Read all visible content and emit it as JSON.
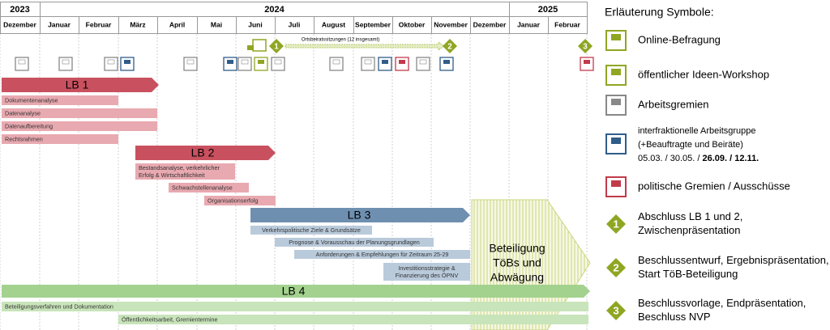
{
  "header": {
    "years": [
      "2023",
      "2024",
      "2025"
    ],
    "months": [
      "Dezember",
      "Januar",
      "Februar",
      "März",
      "April",
      "Mai",
      "Juni",
      "Juli",
      "August",
      "September",
      "Oktober",
      "November",
      "Dezember",
      "Januar",
      "Februar"
    ]
  },
  "milestones": {
    "labels": [
      "1",
      "2",
      "3"
    ],
    "note": "Ortsbeiratssitzungen (12 insgesamt)"
  },
  "phases": [
    {
      "title": "LB 1",
      "tasks": [
        [
          "Dokumentenanalyse"
        ],
        [
          "Datenanalyse"
        ],
        [
          "Datenaufbereitung"
        ],
        [
          "Rechtsrahmen"
        ]
      ]
    },
    {
      "title": "LB 2",
      "tasks": [
        [
          "Bestandsanalyse, verkehrlicher",
          "Erfolg & Wirtschaftlichkeit"
        ],
        [
          "Schwachstellenanalyse"
        ],
        [
          "Organisationserfolg"
        ]
      ]
    },
    {
      "title": "LB 3",
      "tasks": [
        [
          "Verkehrspolitische Ziele & Grundsätze"
        ],
        [
          "Prognose & Vorausschau der Planungsgrundlagen"
        ],
        [
          "Anforderungen & Empfehlungen für Zeitraum 25-29"
        ],
        [
          "Investitionsstrategie &",
          "Finanzierung des ÖPNV"
        ]
      ]
    },
    {
      "title": "LB 4",
      "tasks": [
        [
          "Beteiligungsverfahren und Dokumentation"
        ],
        [
          "Öffentlichkeitsarbeit, Gremientermine"
        ]
      ]
    }
  ],
  "participation": [
    "Beteiligung",
    "TöBs und",
    "Abwägung"
  ],
  "legend": {
    "title": "Erläuterung Symbole:",
    "items": [
      [
        "Online-Befragung"
      ],
      [
        "öffentlicher Ideen-Workshop"
      ],
      [
        "Arbeitsgremien"
      ],
      [
        "interfraktionelle Arbeitsgruppe",
        "(+Beauftragte und Beiräte)",
        "05.03. / 30.05. / ",
        "26.09. / 12.11."
      ],
      [
        "politische Gremien / Ausschüsse"
      ],
      [
        "Abschluss LB 1 und 2,",
        "Zwischenpräsentation"
      ],
      [
        "Beschlussentwurf, Ergebnispräsentation,",
        "Start TöB-Beteiligung"
      ],
      [
        "Beschlussvorlage, Endpräsentation,",
        "Beschluss NVP"
      ]
    ]
  }
}
